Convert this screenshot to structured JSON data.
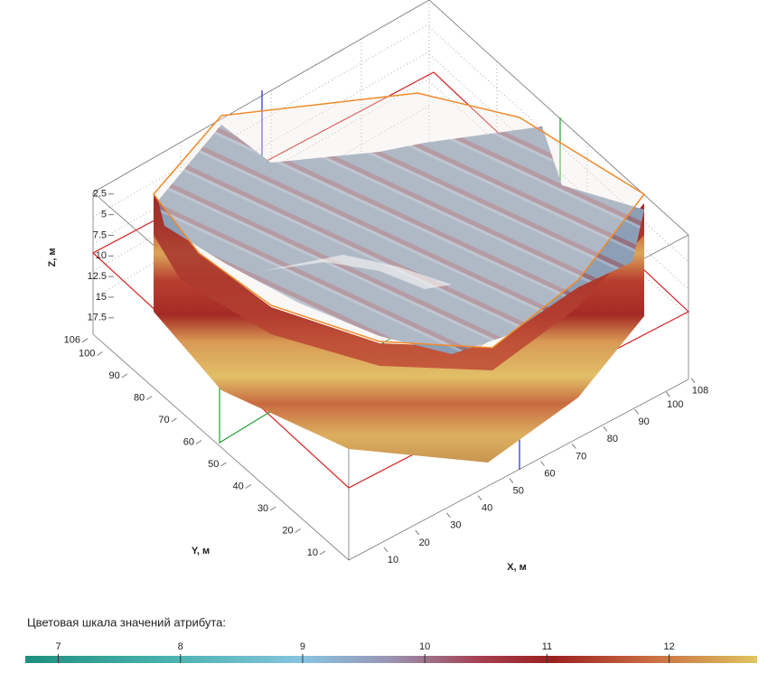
{
  "axes": {
    "z": {
      "label": "Z, м",
      "ticks": [
        2.5,
        5,
        7.5,
        10,
        12.5,
        15,
        17.5
      ]
    },
    "y": {
      "label": "Y, м",
      "ticks": [
        106,
        100,
        90,
        80,
        70,
        60,
        50,
        40,
        30,
        20,
        10
      ]
    },
    "x": {
      "label": "X, м",
      "ticks": [
        10,
        20,
        30,
        40,
        50,
        60,
        70,
        80,
        90,
        100,
        108
      ]
    }
  },
  "colorbar": {
    "title": "Цветовая шкала значений атрибута:",
    "ticks": [
      7,
      8,
      9,
      10,
      11,
      12
    ],
    "lim": [
      6.73,
      12.72
    ]
  }
}
